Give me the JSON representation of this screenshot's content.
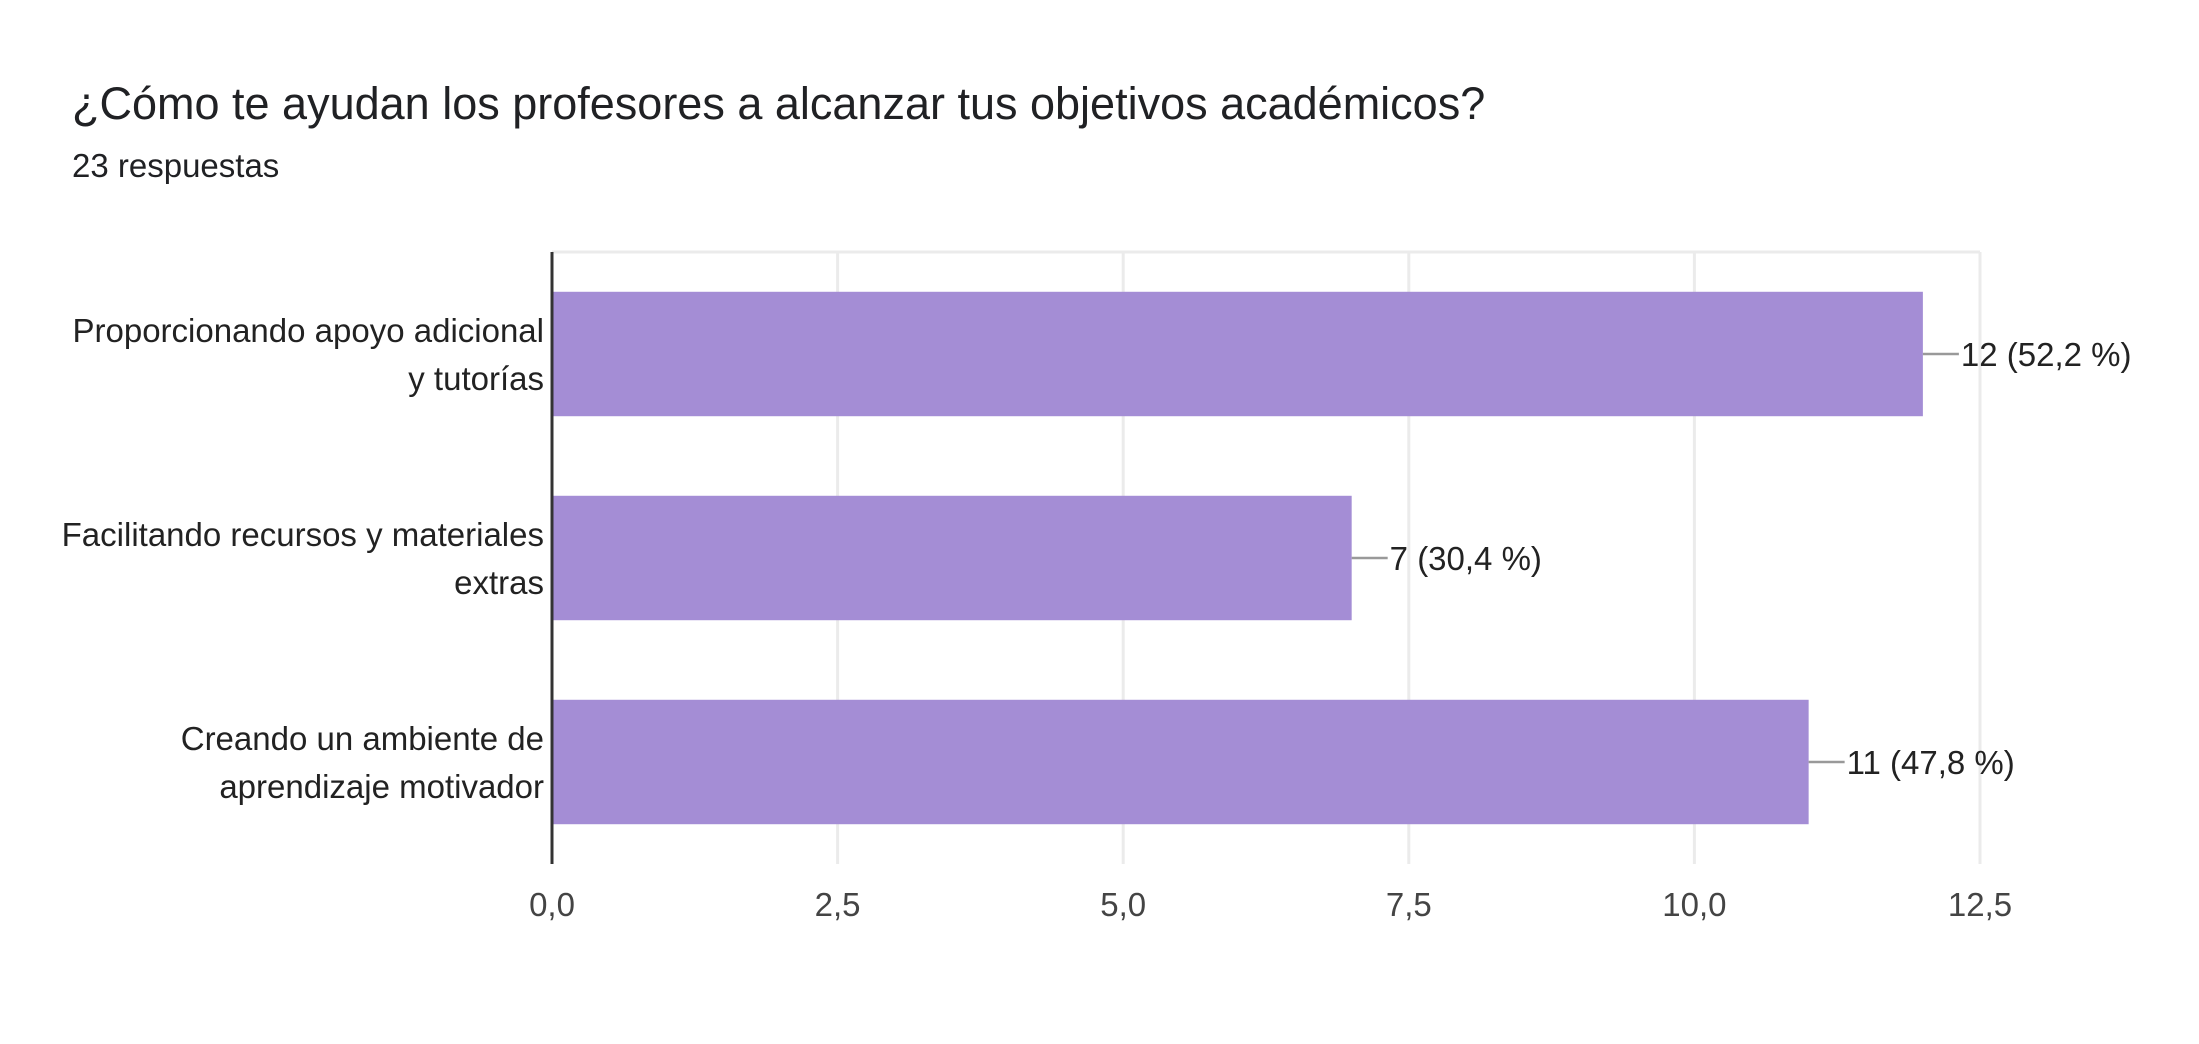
{
  "chart_data": {
    "type": "bar",
    "orientation": "horizontal",
    "title": "¿Cómo te ayudan los profesores a alcanzar tus objetivos académicos?",
    "subtitle": "23 respuestas",
    "categories": [
      [
        "Proporcionando apoyo adicional",
        "y tutorías"
      ],
      [
        "Facilitando recursos y materiales",
        "extras"
      ],
      [
        "Creando un ambiente de",
        "aprendizaje motivador"
      ]
    ],
    "values": [
      12,
      7,
      11
    ],
    "data_labels": [
      "12 (52,2 %)",
      "7 (30,4 %)",
      "11 (47,8 %)"
    ],
    "xlim": [
      0,
      12.5
    ],
    "x_ticks": [
      0,
      2.5,
      5,
      7.5,
      10,
      12.5
    ],
    "x_tick_labels": [
      "0,0",
      "2,5",
      "5,0",
      "7,5",
      "10,0",
      "12,5"
    ],
    "grid": true,
    "bar_color": "#a48dd5",
    "grid_color": "#ebebeb",
    "axis_color": "#333333",
    "connector_color": "#999999"
  }
}
